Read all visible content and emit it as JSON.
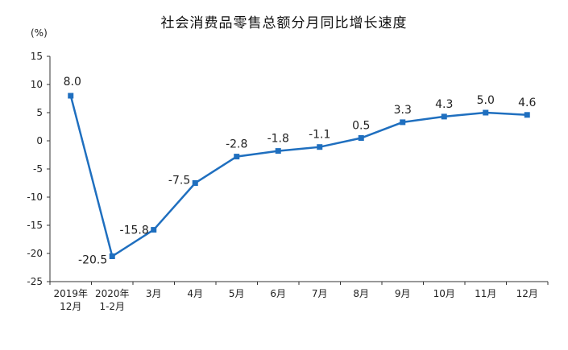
{
  "chart_data": {
    "type": "line",
    "title": "社会消费品零售总额分月同比增长速度",
    "ylabel": "(%)",
    "ylim": [
      -25,
      15
    ],
    "yticks": [
      15,
      10,
      5,
      0,
      -5,
      -10,
      -15,
      -20,
      -25
    ],
    "grid": false,
    "categories": [
      [
        "2019年",
        "12月"
      ],
      [
        "2020年",
        "1-2月"
      ],
      [
        "3月"
      ],
      [
        "4月"
      ],
      [
        "5月"
      ],
      [
        "6月"
      ],
      [
        "7月"
      ],
      [
        "8月"
      ],
      [
        "9月"
      ],
      [
        "10月"
      ],
      [
        "11月"
      ],
      [
        "12月"
      ]
    ],
    "values": [
      8.0,
      -20.5,
      -15.8,
      -7.5,
      -2.8,
      -1.8,
      -1.1,
      0.5,
      3.3,
      4.3,
      5.0,
      4.6
    ],
    "data_labels": [
      "8.0",
      "-20.5",
      "-15.8",
      "-7.5",
      "-2.8",
      "-1.8",
      "-1.1",
      "0.5",
      "3.3",
      "4.3",
      "5.0",
      "4.6"
    ],
    "series_color": "#1f6fbf"
  }
}
